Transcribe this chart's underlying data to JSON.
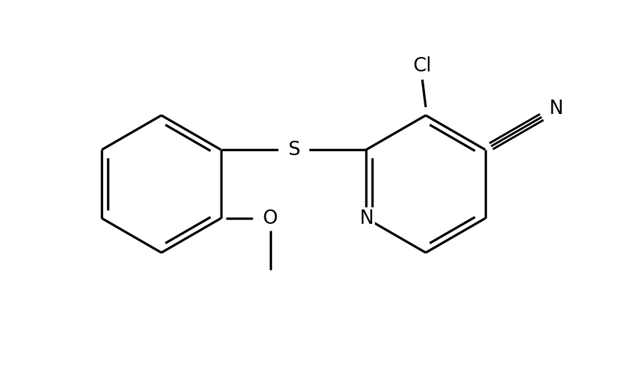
{
  "background_color": "#ffffff",
  "line_color": "#000000",
  "line_width": 2.5,
  "label_fontsize": 20,
  "figsize": [
    9.0,
    5.36
  ],
  "dpi": 100,
  "xlim": [
    0,
    9
  ],
  "ylim": [
    0,
    5.36
  ]
}
